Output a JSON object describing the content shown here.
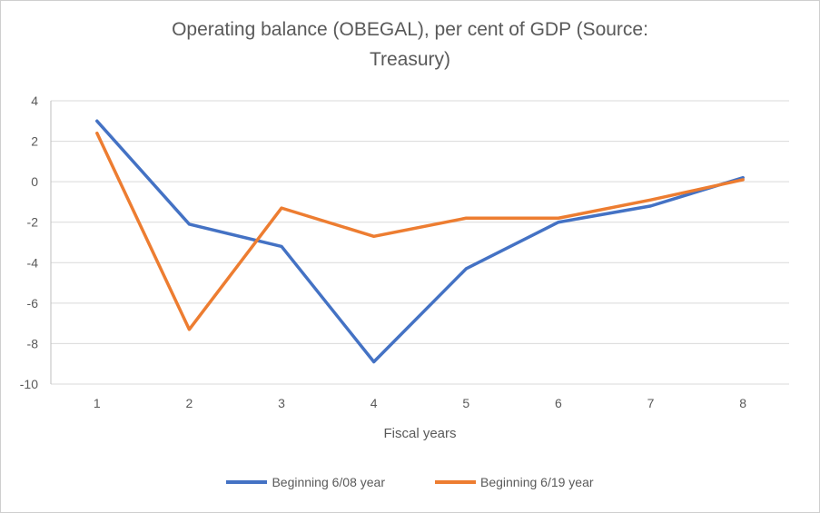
{
  "chart_data": {
    "type": "line",
    "title": "Operating balance (OBEGAL), per cent of GDP (Source: Treasury)",
    "xlabel": "Fiscal years",
    "ylabel": "",
    "categories": [
      "1",
      "2",
      "3",
      "4",
      "5",
      "6",
      "7",
      "8"
    ],
    "series": [
      {
        "name": "Beginning 6/08 year",
        "color": "#4472C4",
        "values": [
          3.0,
          -2.1,
          -3.2,
          -8.9,
          -4.3,
          -2.0,
          -1.2,
          0.2
        ]
      },
      {
        "name": "Beginning 6/19 year",
        "color": "#ED7D31",
        "values": [
          2.4,
          -7.3,
          -1.3,
          -2.7,
          -1.8,
          -1.8,
          -0.9,
          0.1
        ]
      }
    ],
    "ylim": [
      -10,
      4
    ],
    "ytick_step": 2,
    "y_ticks": [
      4,
      2,
      0,
      -2,
      -4,
      -6,
      -8,
      -10
    ],
    "grid": true,
    "legend_position": "bottom",
    "colors": {
      "text": "#595959",
      "gridline": "#d9d9d9",
      "axis": "#bfbfbf"
    }
  }
}
